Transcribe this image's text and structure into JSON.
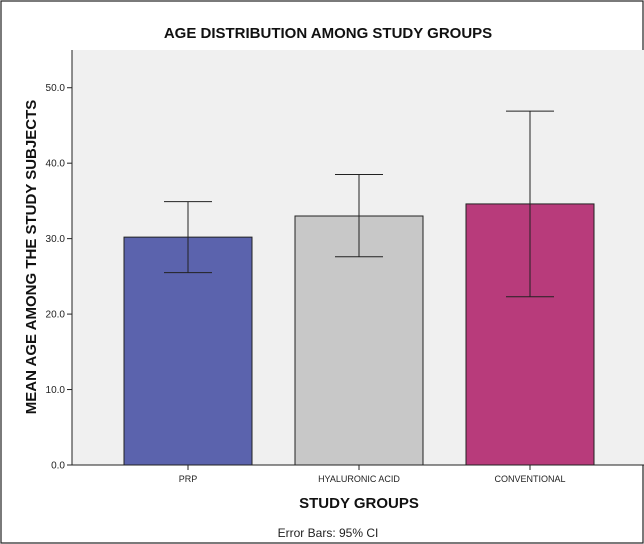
{
  "chart_data": {
    "type": "bar",
    "title": "AGE DISTRIBUTION AMONG STUDY GROUPS",
    "xlabel": "STUDY GROUPS",
    "ylabel": "MEAN AGE AMONG THE STUDY SUBJECTS",
    "ylim": [
      0,
      55
    ],
    "yticks": [
      "0.0",
      "10.0",
      "20.0",
      "30.0",
      "40.0",
      "50.0"
    ],
    "ytick_values": [
      0,
      10,
      20,
      30,
      40,
      50
    ],
    "categories": [
      "PRP",
      "HYALURONIC ACID",
      "CONVENTIONAL"
    ],
    "values": [
      30.2,
      33.0,
      34.6
    ],
    "ci_lower": [
      25.5,
      27.6,
      22.3
    ],
    "ci_upper": [
      34.9,
      38.5,
      46.9
    ],
    "colors": [
      "#5b63ad",
      "#c8c8c8",
      "#b83b7b"
    ],
    "footnote": "Error Bars: 95% CI",
    "grid": false,
    "plot_background": "#f0f0f0"
  }
}
